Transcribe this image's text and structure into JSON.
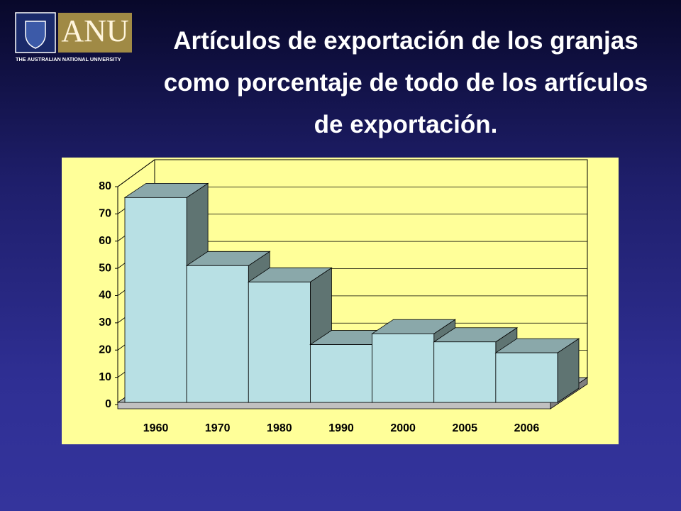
{
  "logo": {
    "name": "ANU",
    "subtitle": "THE AUSTRALIAN NATIONAL UNIVERSITY"
  },
  "chart_data": {
    "type": "bar3d",
    "title": "Artículos de exportación de los granjas como porcentaje de todo de los artículos de exportación.",
    "categories": [
      "1960",
      "1970",
      "1980",
      "1990",
      "2000",
      "2005",
      "2006"
    ],
    "values": [
      76,
      51,
      45,
      22,
      26,
      23,
      19
    ],
    "color": "#b8e0e4",
    "ylim": [
      0,
      80
    ],
    "yticks": [
      0,
      10,
      20,
      30,
      40,
      50,
      60,
      70,
      80
    ],
    "grid": true
  }
}
